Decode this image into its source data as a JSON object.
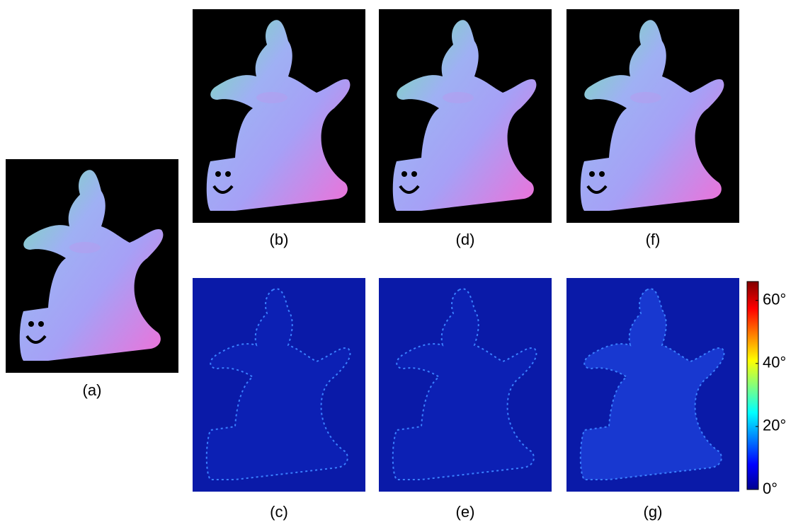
{
  "panels": [
    {
      "label": "(a)",
      "kind": "normal"
    },
    {
      "label": "(b)",
      "kind": "normal"
    },
    {
      "label": "(d)",
      "kind": "normal"
    },
    {
      "label": "(f)",
      "kind": "normal"
    },
    {
      "label": "(c)",
      "kind": "error"
    },
    {
      "label": "(e)",
      "kind": "error"
    },
    {
      "label": "(g)",
      "kind": "error"
    }
  ],
  "colorbar": {
    "lim": [
      0,
      66
    ],
    "ticks": [
      {
        "value": 0,
        "label": "0°"
      },
      {
        "value": 20,
        "label": "20°"
      },
      {
        "value": 40,
        "label": "40°"
      },
      {
        "value": 60,
        "label": "60°"
      }
    ]
  }
}
